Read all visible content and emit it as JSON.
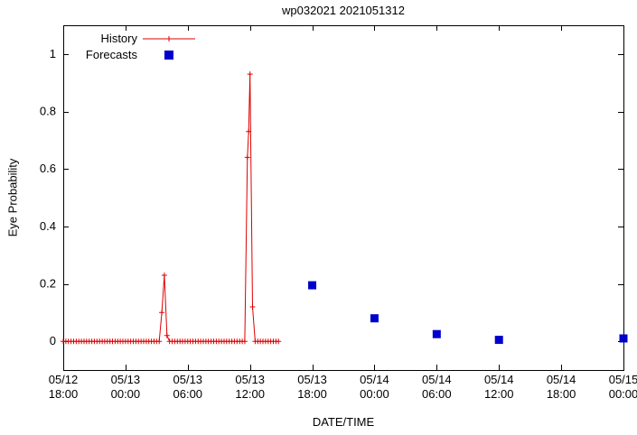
{
  "page": {
    "background": "#ffffff"
  },
  "chart_data": {
    "type": "line",
    "title": "wp032021 2021051312",
    "xlabel": "DATE/TIME",
    "ylabel": "Eye Probability",
    "grid": false,
    "x_axis": {
      "unit": "hours since 05/12 18:00",
      "range_hours": [
        0,
        54
      ],
      "tick_hours": [
        0,
        6,
        12,
        18,
        24,
        30,
        36,
        42,
        48,
        54
      ],
      "tick_labels": [
        [
          "05/12",
          "18:00"
        ],
        [
          "05/13",
          "00:00"
        ],
        [
          "05/13",
          "06:00"
        ],
        [
          "05/13",
          "12:00"
        ],
        [
          "05/13",
          "18:00"
        ],
        [
          "05/14",
          "00:00"
        ],
        [
          "05/14",
          "06:00"
        ],
        [
          "05/14",
          "12:00"
        ],
        [
          "05/14",
          "18:00"
        ],
        [
          "05/15",
          "00:00"
        ]
      ]
    },
    "y_axis": {
      "range": [
        -0.1,
        1.1
      ],
      "ticks": [
        0,
        0.2,
        0.4,
        0.6,
        0.8,
        1
      ],
      "tick_labels": [
        "0",
        "0.2",
        "0.4",
        "0.6",
        "0.8",
        "1"
      ]
    },
    "legend": {
      "position": "top-left",
      "entries": [
        {
          "label": "History",
          "style": "line-plus",
          "color": "#dd0000"
        },
        {
          "label": "Forecasts",
          "style": "filled-square",
          "color": "#0000cc"
        }
      ]
    },
    "series": [
      {
        "name": "History",
        "type": "line+plus",
        "color": "#dd0000",
        "points": [
          [
            0,
            0
          ],
          [
            0.25,
            0
          ],
          [
            0.5,
            0
          ],
          [
            0.75,
            0
          ],
          [
            1,
            0
          ],
          [
            1.25,
            0
          ],
          [
            1.5,
            0
          ],
          [
            1.75,
            0
          ],
          [
            2,
            0
          ],
          [
            2.25,
            0
          ],
          [
            2.5,
            0
          ],
          [
            2.75,
            0
          ],
          [
            3,
            0
          ],
          [
            3.25,
            0
          ],
          [
            3.5,
            0
          ],
          [
            3.75,
            0
          ],
          [
            4,
            0
          ],
          [
            4.25,
            0
          ],
          [
            4.5,
            0
          ],
          [
            4.75,
            0
          ],
          [
            5,
            0
          ],
          [
            5.25,
            0
          ],
          [
            5.5,
            0
          ],
          [
            5.75,
            0
          ],
          [
            6,
            0
          ],
          [
            6.25,
            0
          ],
          [
            6.5,
            0
          ],
          [
            6.75,
            0
          ],
          [
            7,
            0
          ],
          [
            7.25,
            0
          ],
          [
            7.5,
            0
          ],
          [
            7.75,
            0
          ],
          [
            8,
            0
          ],
          [
            8.25,
            0
          ],
          [
            8.5,
            0
          ],
          [
            8.75,
            0
          ],
          [
            9,
            0
          ],
          [
            9.25,
            0
          ],
          [
            9.5,
            0.1
          ],
          [
            9.75,
            0.23
          ],
          [
            10,
            0.02
          ],
          [
            10.25,
            0
          ],
          [
            10.5,
            0
          ],
          [
            10.75,
            0
          ],
          [
            11,
            0
          ],
          [
            11.25,
            0
          ],
          [
            11.5,
            0
          ],
          [
            11.75,
            0
          ],
          [
            12,
            0
          ],
          [
            12.25,
            0
          ],
          [
            12.5,
            0
          ],
          [
            12.75,
            0
          ],
          [
            13,
            0
          ],
          [
            13.25,
            0
          ],
          [
            13.5,
            0
          ],
          [
            13.75,
            0
          ],
          [
            14,
            0
          ],
          [
            14.25,
            0
          ],
          [
            14.5,
            0
          ],
          [
            14.75,
            0
          ],
          [
            15,
            0
          ],
          [
            15.25,
            0
          ],
          [
            15.5,
            0
          ],
          [
            15.75,
            0
          ],
          [
            16,
            0
          ],
          [
            16.25,
            0
          ],
          [
            16.5,
            0
          ],
          [
            16.75,
            0
          ],
          [
            17,
            0
          ],
          [
            17.25,
            0
          ],
          [
            17.5,
            0
          ],
          [
            17.75,
            0.64
          ],
          [
            17.875,
            0.73
          ],
          [
            18,
            0.93
          ],
          [
            18.25,
            0.12
          ],
          [
            18.5,
            0
          ],
          [
            18.75,
            0
          ],
          [
            19,
            0
          ],
          [
            19.25,
            0
          ],
          [
            19.5,
            0
          ],
          [
            19.75,
            0
          ],
          [
            20,
            0
          ],
          [
            20.25,
            0
          ],
          [
            20.5,
            0
          ],
          [
            20.75,
            0
          ]
        ]
      },
      {
        "name": "Forecasts",
        "type": "points-square",
        "color": "#0000cc",
        "points": [
          [
            24,
            0.195
          ],
          [
            30,
            0.08
          ],
          [
            36,
            0.025
          ],
          [
            42,
            0.005
          ],
          [
            54,
            0.01
          ]
        ]
      }
    ]
  }
}
